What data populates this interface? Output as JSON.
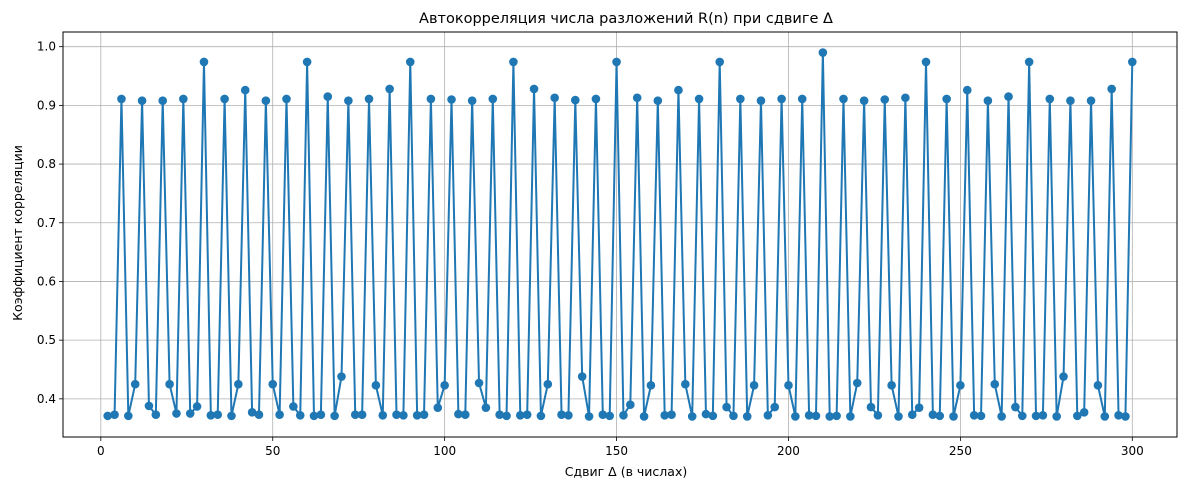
{
  "chart_data": {
    "type": "line",
    "title": "Автокорреляция числа разложений R(n) при сдвиге Δ",
    "xlabel": "Сдвиг Δ (в числах)",
    "ylabel": "Коэффициент корреляции",
    "xlim": [
      -11,
      313
    ],
    "ylim": [
      0.335,
      1.025
    ],
    "x_ticks": [
      0,
      50,
      100,
      150,
      200,
      250,
      300
    ],
    "y_ticks": [
      0.4,
      0.5,
      0.6,
      0.7,
      0.8,
      0.9,
      1.0
    ],
    "x_tick_labels": [
      "0",
      "50",
      "100",
      "150",
      "200",
      "250",
      "300"
    ],
    "y_tick_labels": [
      "0.4",
      "0.5",
      "0.6",
      "0.7",
      "0.8",
      "0.9",
      "1.0"
    ],
    "grid": true,
    "marker": "circle",
    "color": "#1f77b4",
    "series": [
      {
        "x": [
          2,
          4,
          6,
          8,
          10,
          12,
          14,
          16,
          18,
          20,
          22,
          24,
          26,
          28,
          30,
          32,
          34,
          36,
          38,
          40,
          42,
          44,
          46,
          48,
          50,
          52,
          54,
          56,
          58,
          60,
          62,
          64,
          66,
          68,
          70,
          72,
          74,
          76,
          78,
          80,
          82,
          84,
          86,
          88,
          90,
          92,
          94,
          96,
          98,
          100,
          102,
          104,
          106,
          108,
          110,
          112,
          114,
          116,
          118,
          120,
          122,
          124,
          126,
          128,
          130,
          132,
          134,
          136,
          138,
          140,
          142,
          144,
          146,
          148,
          150,
          152,
          154,
          156,
          158,
          160,
          162,
          164,
          166,
          168,
          170,
          172,
          174,
          176,
          178,
          180,
          182,
          184,
          186,
          188,
          190,
          192,
          194,
          196,
          198,
          200,
          202,
          204,
          206,
          208,
          210,
          212,
          214,
          216,
          218,
          220,
          222,
          224,
          226,
          228,
          230,
          232,
          234,
          236,
          238,
          240,
          242,
          244,
          246,
          248,
          250,
          252,
          254,
          256,
          258,
          260,
          262,
          264,
          266,
          268,
          270,
          272,
          274,
          276,
          278,
          280,
          282,
          284,
          286,
          288,
          290,
          292,
          294,
          296,
          298,
          300
        ],
        "y": [
          0.371,
          0.373,
          0.911,
          0.371,
          0.425,
          0.908,
          0.388,
          0.373,
          0.908,
          0.425,
          0.375,
          0.911,
          0.375,
          0.387,
          0.974,
          0.372,
          0.373,
          0.911,
          0.371,
          0.425,
          0.926,
          0.377,
          0.373,
          0.908,
          0.425,
          0.373,
          0.911,
          0.387,
          0.372,
          0.974,
          0.371,
          0.373,
          0.915,
          0.371,
          0.438,
          0.908,
          0.373,
          0.373,
          0.911,
          0.423,
          0.372,
          0.928,
          0.373,
          0.372,
          0.974,
          0.372,
          0.373,
          0.911,
          0.385,
          0.423,
          0.91,
          0.374,
          0.373,
          0.908,
          0.427,
          0.385,
          0.911,
          0.373,
          0.371,
          0.974,
          0.372,
          0.373,
          0.928,
          0.371,
          0.425,
          0.913,
          0.373,
          0.372,
          0.909,
          0.438,
          0.37,
          0.911,
          0.373,
          0.371,
          0.974,
          0.372,
          0.39,
          0.913,
          0.37,
          0.423,
          0.908,
          0.372,
          0.373,
          0.926,
          0.425,
          0.37,
          0.911,
          0.374,
          0.371,
          0.974,
          0.386,
          0.371,
          0.911,
          0.37,
          0.423,
          0.908,
          0.372,
          0.386,
          0.911,
          0.423,
          0.37,
          0.911,
          0.372,
          0.371,
          0.99,
          0.37,
          0.371,
          0.911,
          0.37,
          0.427,
          0.908,
          0.386,
          0.372,
          0.91,
          0.423,
          0.37,
          0.913,
          0.373,
          0.385,
          0.974,
          0.373,
          0.371,
          0.911,
          0.37,
          0.423,
          0.926,
          0.372,
          0.371,
          0.908,
          0.425,
          0.37,
          0.915,
          0.386,
          0.371,
          0.974,
          0.371,
          0.372,
          0.911,
          0.37,
          0.438,
          0.908,
          0.371,
          0.377,
          0.908,
          0.423,
          0.37,
          0.928,
          0.372,
          0.37,
          0.974
        ]
      }
    ]
  }
}
